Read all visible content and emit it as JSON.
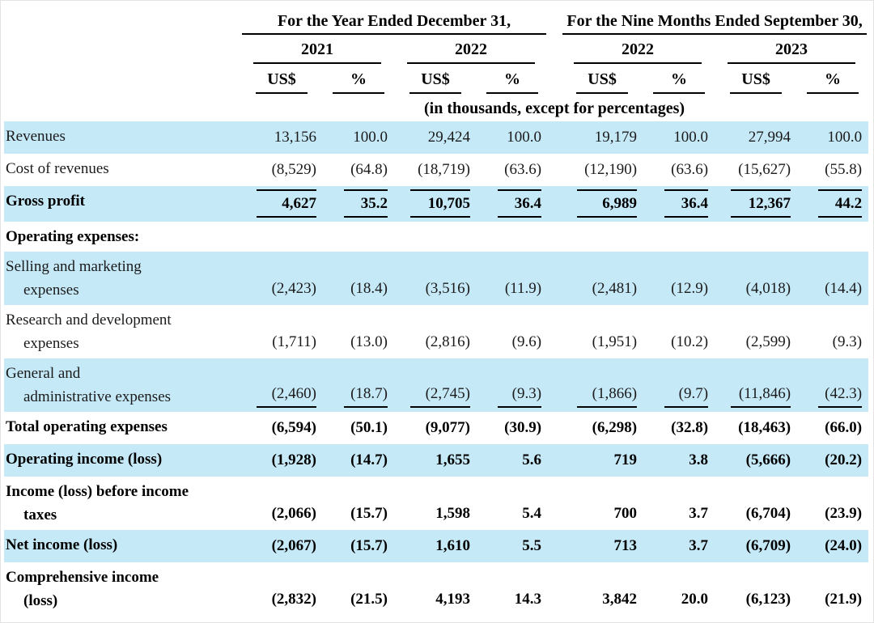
{
  "colors": {
    "row_highlight": "#c6e9f8",
    "rule": "#000000",
    "text": "#1b1b1b"
  },
  "table": {
    "groups": [
      {
        "title": "For the Year Ended December 31,",
        "years": [
          "2021",
          "2022"
        ]
      },
      {
        "title": "For the Nine Months Ended September 30,",
        "years": [
          "2022",
          "2023"
        ]
      }
    ],
    "currency_header": "US$",
    "percent_header": "%",
    "note": "(in thousands, except for percentages)",
    "rows": [
      {
        "label_lines": [
          "Revenues"
        ],
        "bold": false,
        "highlight": true,
        "rule": "none",
        "values": [
          "13,156",
          "100.0",
          "29,424",
          "100.0",
          "19,179",
          "100.0",
          "27,994",
          "100.0"
        ]
      },
      {
        "label_lines": [
          "Cost of revenues"
        ],
        "bold": false,
        "highlight": false,
        "rule": "none",
        "values": [
          "(8,529)",
          "(64.8)",
          "(18,719)",
          "(63.6)",
          "(12,190)",
          "(63.6)",
          "(15,627)",
          "(55.8)"
        ]
      },
      {
        "label_lines": [
          "Gross profit"
        ],
        "bold": true,
        "highlight": true,
        "rule": "above-below",
        "values": [
          "4,627",
          "35.2",
          "10,705",
          "36.4",
          "6,989",
          "36.4",
          "12,367",
          "44.2"
        ]
      },
      {
        "label_lines": [
          "Operating expenses:"
        ],
        "bold": true,
        "highlight": false,
        "rule": "none",
        "values": [
          "",
          "",
          "",
          "",
          "",
          "",
          "",
          ""
        ]
      },
      {
        "label_lines": [
          "Selling and marketing",
          "expenses"
        ],
        "bold": false,
        "highlight": true,
        "rule": "none",
        "values": [
          "(2,423)",
          "(18.4)",
          "(3,516)",
          "(11.9)",
          "(2,481)",
          "(12.9)",
          "(4,018)",
          "(14.4)"
        ]
      },
      {
        "label_lines": [
          "Research and development",
          "expenses"
        ],
        "bold": false,
        "highlight": false,
        "rule": "none",
        "values": [
          "(1,711)",
          "(13.0)",
          "(2,816)",
          "(9.6)",
          "(1,951)",
          "(10.2)",
          "(2,599)",
          "(9.3)"
        ]
      },
      {
        "label_lines": [
          "General and",
          "administrative expenses"
        ],
        "bold": false,
        "highlight": true,
        "rule": "below",
        "values": [
          "(2,460)",
          "(18.7)",
          "(2,745)",
          "(9.3)",
          "(1,866)",
          "(9.7)",
          "(11,846)",
          "(42.3)"
        ]
      },
      {
        "label_lines": [
          "Total operating expenses"
        ],
        "bold": true,
        "highlight": false,
        "rule": "none",
        "values": [
          "(6,594)",
          "(50.1)",
          "(9,077)",
          "(30.9)",
          "(6,298)",
          "(32.8)",
          "(18,463)",
          "(66.0)"
        ]
      },
      {
        "label_lines": [
          "Operating income (loss)"
        ],
        "bold": true,
        "highlight": true,
        "rule": "none",
        "values": [
          "(1,928)",
          "(14.7)",
          "1,655",
          "5.6",
          "719",
          "3.8",
          "(5,666)",
          "(20.2)"
        ]
      },
      {
        "label_lines": [
          "Income (loss) before income",
          "taxes"
        ],
        "bold": true,
        "highlight": false,
        "rule": "none",
        "values": [
          "(2,066)",
          "(15.7)",
          "1,598",
          "5.4",
          "700",
          "3.7",
          "(6,704)",
          "(23.9)"
        ]
      },
      {
        "label_lines": [
          "Net income (loss)"
        ],
        "bold": true,
        "highlight": true,
        "rule": "none",
        "values": [
          "(2,067)",
          "(15.7)",
          "1,610",
          "5.5",
          "713",
          "3.7",
          "(6,709)",
          "(24.0)"
        ]
      },
      {
        "label_lines": [
          "Comprehensive income",
          "(loss)"
        ],
        "bold": true,
        "highlight": false,
        "rule": "none",
        "values": [
          "(2,832)",
          "(21.5)",
          "4,193",
          "14.3",
          "3,842",
          "20.0",
          "(6,123)",
          "(21.9)"
        ]
      }
    ]
  }
}
